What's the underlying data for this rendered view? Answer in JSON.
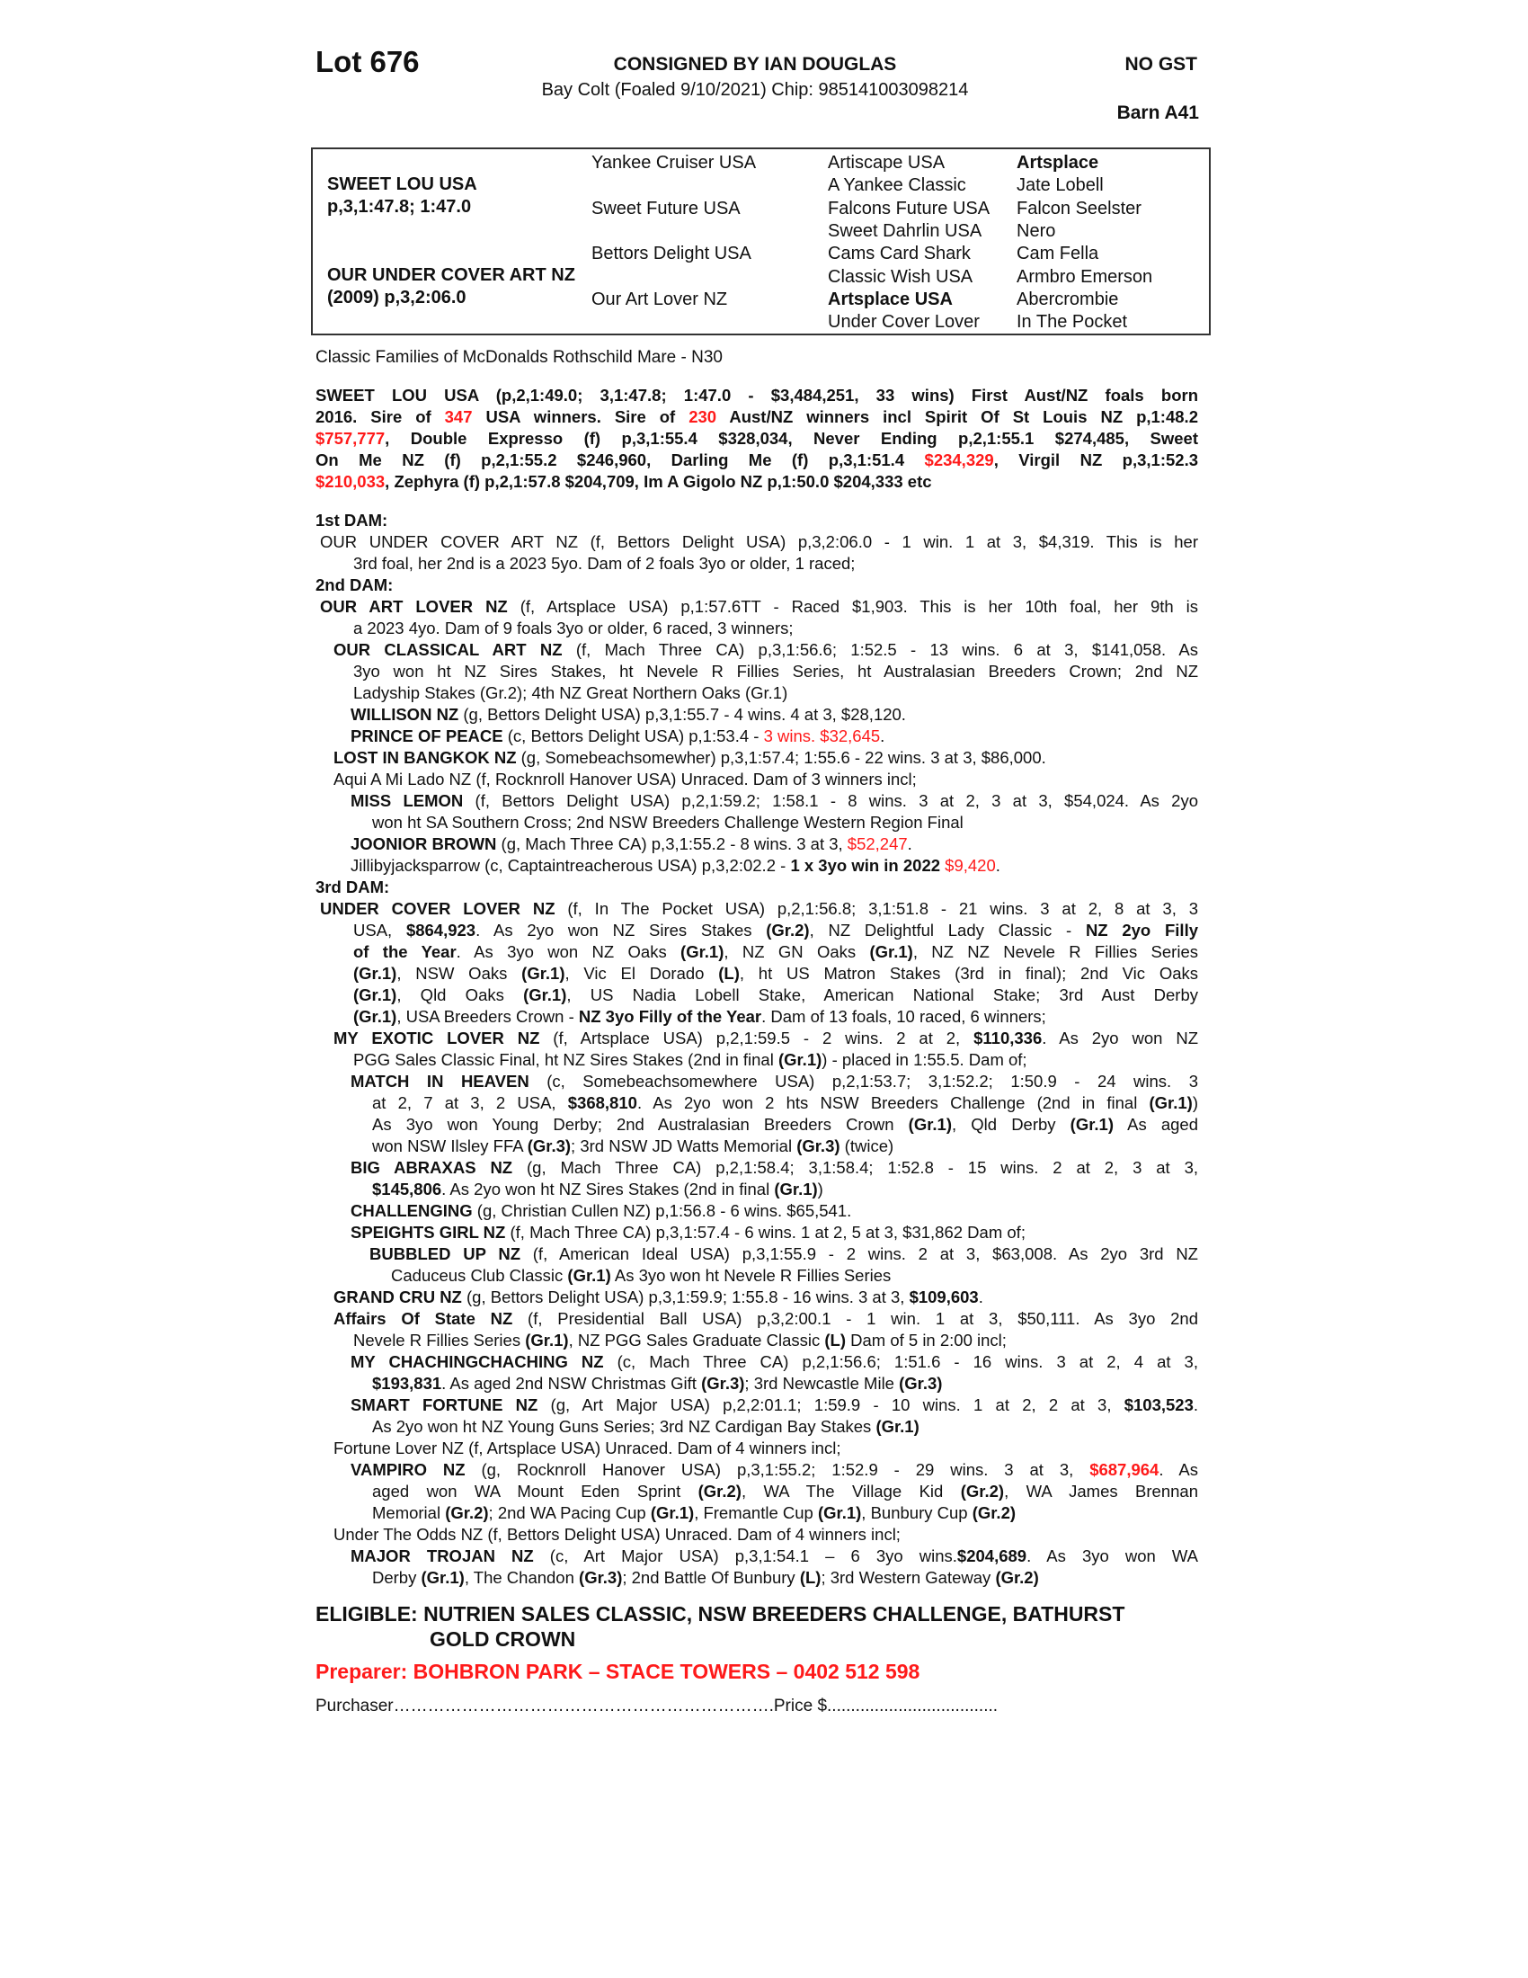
{
  "header": {
    "lot": "Lot 676",
    "consigned": "CONSIGNED BY IAN DOUGLAS",
    "horse": "Bay Colt (Foaled 9/10/2021) Chip: 985141003098214",
    "gst": "NO GST",
    "barn": "Barn A41"
  },
  "pedigree": {
    "sire": {
      "name": "SWEET LOU USA",
      "record": "p,3,1:47.8; 1:47.0"
    },
    "dam": {
      "name": "OUR UNDER COVER ART NZ",
      "record": "(2009) p,3,2:06.0"
    },
    "gen2": [
      "Yankee Cruiser USA",
      "Sweet Future USA",
      "Bettors Delight USA",
      "Our Art Lover NZ"
    ],
    "gen3": [
      "Artiscape USA",
      "A Yankee Classic",
      "Falcons Future USA",
      "Sweet Dahrlin USA",
      "Cams Card Shark",
      "Classic Wish USA",
      "Artsplace USA",
      "Under Cover Lover"
    ],
    "gen4": [
      "Artsplace",
      "Jate Lobell",
      "Falcon Seelster",
      "Nero",
      "Cam Fella",
      "Armbro Emerson",
      "Abercrombie",
      "In The Pocket"
    ],
    "bold_gen3": [
      6
    ],
    "bold_gen4": [
      0
    ]
  },
  "family": "Classic Families of McDonalds Rothschild Mare - N30",
  "colors": {
    "highlight": "#ff1a1a",
    "text": "#111111"
  },
  "sire_para": [
    [
      {
        "t": "SWEET LOU USA (p,2,1:49.0; 3,1:47.8; 1:47.0 - $3,484,251, 33 wins) First Aust/NZ foals born",
        "s": "b"
      }
    ],
    [
      {
        "t": "2016. Sire of ",
        "s": "b"
      },
      {
        "t": "347",
        "s": "rb"
      },
      {
        "t": " USA winners. Sire of ",
        "s": "b"
      },
      {
        "t": "230",
        "s": "rb"
      },
      {
        "t": " Aust/NZ winners incl Spirit Of St Louis NZ p,1:48.2",
        "s": "b"
      }
    ],
    [
      {
        "t": "$757,777",
        "s": "rb"
      },
      {
        "t": ", Double Expresso (f) p,3,1:55.4 $328,034, Never Ending p,2,1:55.1 $274,485, Sweet",
        "s": "b"
      }
    ],
    [
      {
        "t": "On Me NZ (f) p,2,1:55.2 $246,960, Darling Me (f) p,3,1:51.4 ",
        "s": "b"
      },
      {
        "t": "$234,329",
        "s": "rb"
      },
      {
        "t": ", Virgil NZ p,3,1:52.3",
        "s": "b"
      }
    ],
    [
      {
        "t": "$210,033",
        "s": "rb"
      },
      {
        "t": ", Zephyra (f) p,2,1:57.8 $204,709, Im A Gigolo NZ p,1:50.0 $204,333 etc",
        "s": "b"
      }
    ]
  ],
  "entries": [
    {
      "lvl": "h",
      "lines": [
        [
          {
            "t": "1st DAM:",
            "s": "b"
          }
        ]
      ]
    },
    {
      "lvl": "0",
      "lines": [
        [
          {
            "t": "OUR UNDER COVER ART NZ (f, Bettors Delight USA) p,3,2:06.0 - 1 win. 1 at 3, $4,319. This is her",
            "s": ""
          }
        ],
        [
          {
            "t": "3rd foal, her 2nd is a 2023 5yo. Dam of 2 foals 3yo or older, 1 raced;",
            "s": ""
          }
        ]
      ]
    },
    {
      "lvl": "h",
      "lines": [
        [
          {
            "t": "2nd DAM:",
            "s": "b"
          }
        ]
      ]
    },
    {
      "lvl": "0",
      "lines": [
        [
          {
            "t": "OUR ART LOVER NZ",
            "s": "b"
          },
          {
            "t": " (f, Artsplace USA) p,1:57.6TT - Raced $1,903. This is her 10th foal, her 9th is",
            "s": ""
          }
        ],
        [
          {
            "t": "a 2023 4yo. Dam of 9 foals 3yo or older, 6 raced, 3 winners;",
            "s": ""
          }
        ]
      ]
    },
    {
      "lvl": "1",
      "lines": [
        [
          {
            "t": "OUR CLASSICAL ART NZ",
            "s": "b"
          },
          {
            "t": " (f, Mach Three CA) p,3,1:56.6; 1:52.5 - 13 wins. 6 at 3, $141,058. As",
            "s": ""
          }
        ],
        [
          {
            "t": "3yo won ht NZ Sires Stakes, ht Nevele R Fillies Series, ht Australasian Breeders Crown; 2nd NZ",
            "s": ""
          }
        ],
        [
          {
            "t": "Ladyship Stakes (Gr.2); 4th NZ Great Northern Oaks (Gr.1)",
            "s": ""
          }
        ]
      ]
    },
    {
      "lvl": "2",
      "lines": [
        [
          {
            "t": "WILLISON NZ",
            "s": "b"
          },
          {
            "t": " (g, Bettors Delight USA) p,3,1:55.7 - 4 wins. 4 at 3, $28,120.",
            "s": ""
          }
        ]
      ]
    },
    {
      "lvl": "2",
      "lines": [
        [
          {
            "t": "PRINCE OF PEACE",
            "s": "b"
          },
          {
            "t": " (c, Bettors Delight USA) p,1:53.4 - ",
            "s": ""
          },
          {
            "t": "3 wins. $32,645",
            "s": "r"
          },
          {
            "t": ".",
            "s": ""
          }
        ]
      ]
    },
    {
      "lvl": "1",
      "lines": [
        [
          {
            "t": "LOST IN BANGKOK NZ",
            "s": "b"
          },
          {
            "t": " (g, Somebeachsomewher) p,3,1:57.4; 1:55.6 - 22 wins. 3 at 3, $86,000.",
            "s": ""
          }
        ]
      ]
    },
    {
      "lvl": "1",
      "lines": [
        [
          {
            "t": "Aqui A Mi Lado NZ (f, Rocknroll Hanover USA) Unraced. Dam of 3 winners incl;",
            "s": ""
          }
        ]
      ]
    },
    {
      "lvl": "2",
      "lines": [
        [
          {
            "t": "MISS LEMON",
            "s": "b"
          },
          {
            "t": " (f, Bettors Delight USA) p,2,1:59.2; 1:58.1 - 8 wins. 3 at 2, 3 at 3, $54,024. As 2yo",
            "s": ""
          }
        ],
        [
          {
            "t": "won ht SA Southern Cross; 2nd NSW Breeders Challenge Western Region Final",
            "s": ""
          }
        ]
      ]
    },
    {
      "lvl": "2",
      "lines": [
        [
          {
            "t": "JOONIOR BROWN",
            "s": "b"
          },
          {
            "t": " (g, Mach Three CA) p,3,1:55.2 - 8 wins. 3 at 3, ",
            "s": ""
          },
          {
            "t": "$52,247",
            "s": "r"
          },
          {
            "t": ".",
            "s": ""
          }
        ]
      ]
    },
    {
      "lvl": "2",
      "lines": [
        [
          {
            "t": "Jillibyjacksparrow (c, Captaintreacherous USA) p,3,2:02.2 - ",
            "s": ""
          },
          {
            "t": "1 x 3yo win in 2022",
            "s": "b"
          },
          {
            "t": " ",
            "s": ""
          },
          {
            "t": "$9,420",
            "s": "r"
          },
          {
            "t": ".",
            "s": ""
          }
        ]
      ]
    },
    {
      "lvl": "h",
      "lines": [
        [
          {
            "t": "3rd DAM:",
            "s": "b"
          }
        ]
      ]
    },
    {
      "lvl": "0",
      "lines": [
        [
          {
            "t": "UNDER COVER LOVER NZ",
            "s": "b"
          },
          {
            "t": " (f, In The Pocket USA) p,2,1:56.8; 3,1:51.8 - 21 wins. 3 at 2, 8 at 3, 3",
            "s": ""
          }
        ],
        [
          {
            "t": "USA, ",
            "s": ""
          },
          {
            "t": "$864,923",
            "s": "b"
          },
          {
            "t": ". As 2yo won NZ Sires Stakes ",
            "s": ""
          },
          {
            "t": "(Gr.2)",
            "s": "b"
          },
          {
            "t": ", NZ Delightful Lady Classic - ",
            "s": ""
          },
          {
            "t": "NZ 2yo Filly",
            "s": "b"
          }
        ],
        [
          {
            "t": "of the Year",
            "s": "b"
          },
          {
            "t": ". As 3yo won NZ Oaks ",
            "s": ""
          },
          {
            "t": "(Gr.1)",
            "s": "b"
          },
          {
            "t": ", NZ GN Oaks ",
            "s": ""
          },
          {
            "t": "(Gr.1)",
            "s": "b"
          },
          {
            "t": ", NZ NZ Nevele R Fillies Series",
            "s": ""
          }
        ],
        [
          {
            "t": "(Gr.1)",
            "s": "b"
          },
          {
            "t": ", NSW Oaks ",
            "s": ""
          },
          {
            "t": "(Gr.1)",
            "s": "b"
          },
          {
            "t": ", Vic El Dorado ",
            "s": ""
          },
          {
            "t": "(L)",
            "s": "b"
          },
          {
            "t": ", ht US Matron Stakes (3rd in final); 2nd Vic Oaks",
            "s": ""
          }
        ],
        [
          {
            "t": "(Gr.1)",
            "s": "b"
          },
          {
            "t": ", Qld Oaks ",
            "s": ""
          },
          {
            "t": "(Gr.1)",
            "s": "b"
          },
          {
            "t": ", US Nadia Lobell Stake, American National Stake; 3rd Aust Derby",
            "s": ""
          }
        ],
        [
          {
            "t": "(Gr.1)",
            "s": "b"
          },
          {
            "t": ", USA Breeders Crown - ",
            "s": ""
          },
          {
            "t": "NZ 3yo Filly of the Year",
            "s": "b"
          },
          {
            "t": ". Dam of 13 foals, 10 raced, 6 winners;",
            "s": ""
          }
        ]
      ]
    },
    {
      "lvl": "1",
      "lines": [
        [
          {
            "t": "MY EXOTIC LOVER NZ",
            "s": "b"
          },
          {
            "t": " (f, Artsplace USA) p,2,1:59.5 - 2 wins. 2 at 2, ",
            "s": ""
          },
          {
            "t": "$110,336",
            "s": "b"
          },
          {
            "t": ". As 2yo won NZ",
            "s": ""
          }
        ],
        [
          {
            "t": "PGG Sales Classic Final, ht NZ Sires Stakes (2nd in final ",
            "s": ""
          },
          {
            "t": "(Gr.1)",
            "s": "b"
          },
          {
            "t": ") - placed in 1:55.5. Dam of;",
            "s": ""
          }
        ]
      ]
    },
    {
      "lvl": "2",
      "lines": [
        [
          {
            "t": "MATCH IN HEAVEN",
            "s": "b"
          },
          {
            "t": " (c, Somebeachsomewhere USA) p,2,1:53.7; 3,1:52.2; 1:50.9 - 24 wins. 3",
            "s": ""
          }
        ],
        [
          {
            "t": "at 2, 7 at 3, 2 USA, ",
            "s": ""
          },
          {
            "t": "$368,810",
            "s": "b"
          },
          {
            "t": ". As 2yo won 2 hts NSW Breeders Challenge (2nd in final ",
            "s": ""
          },
          {
            "t": "(Gr.1)",
            "s": "b"
          },
          {
            "t": ")",
            "s": ""
          }
        ],
        [
          {
            "t": "As 3yo won Young Derby; 2nd Australasian Breeders Crown ",
            "s": ""
          },
          {
            "t": "(Gr.1)",
            "s": "b"
          },
          {
            "t": ", Qld Derby ",
            "s": ""
          },
          {
            "t": "(Gr.1)",
            "s": "b"
          },
          {
            "t": " As aged",
            "s": ""
          }
        ],
        [
          {
            "t": "won NSW Ilsley FFA ",
            "s": ""
          },
          {
            "t": "(Gr.3)",
            "s": "b"
          },
          {
            "t": "; 3rd NSW JD Watts Memorial ",
            "s": ""
          },
          {
            "t": "(Gr.3)",
            "s": "b"
          },
          {
            "t": " (twice)",
            "s": ""
          }
        ]
      ]
    },
    {
      "lvl": "2",
      "lines": [
        [
          {
            "t": "BIG ABRAXAS NZ",
            "s": "b"
          },
          {
            "t": " (g, Mach Three CA) p,2,1:58.4; 3,1:58.4; 1:52.8 - 15 wins. 2 at 2, 3 at 3,",
            "s": ""
          }
        ],
        [
          {
            "t": "$145,806",
            "s": "b"
          },
          {
            "t": ". As 2yo won ht NZ Sires Stakes (2nd in final ",
            "s": ""
          },
          {
            "t": "(Gr.1)",
            "s": "b"
          },
          {
            "t": ")",
            "s": ""
          }
        ]
      ]
    },
    {
      "lvl": "2",
      "lines": [
        [
          {
            "t": "CHALLENGING",
            "s": "b"
          },
          {
            "t": " (g, Christian Cullen NZ) p,1:56.8 - 6 wins. $65,541.",
            "s": ""
          }
        ]
      ]
    },
    {
      "lvl": "2",
      "lines": [
        [
          {
            "t": "SPEIGHTS GIRL NZ",
            "s": "b"
          },
          {
            "t": " (f, Mach Three CA) p,3,1:57.4 - 6 wins. 1 at 2, 5 at 3, $31,862 Dam of;",
            "s": ""
          }
        ]
      ]
    },
    {
      "lvl": "3",
      "lines": [
        [
          {
            "t": "BUBBLED UP NZ",
            "s": "b"
          },
          {
            "t": " (f, American Ideal USA) p,3,1:55.9 - 2 wins. 2 at 3, $63,008. As 2yo 3rd NZ",
            "s": ""
          }
        ],
        [
          {
            "t": "Caduceus Club Classic ",
            "s": ""
          },
          {
            "t": "(Gr.1)",
            "s": "b"
          },
          {
            "t": " As 3yo won ht Nevele R Fillies Series",
            "s": ""
          }
        ]
      ]
    },
    {
      "lvl": "1",
      "lines": [
        [
          {
            "t": "GRAND CRU NZ",
            "s": "b"
          },
          {
            "t": " (g, Bettors Delight USA) p,3,1:59.9; 1:55.8 - 16 wins. 3 at 3, ",
            "s": ""
          },
          {
            "t": "$109,603",
            "s": "b"
          },
          {
            "t": ".",
            "s": ""
          }
        ]
      ]
    },
    {
      "lvl": "1",
      "lines": [
        [
          {
            "t": "Affairs Of State NZ",
            "s": "b"
          },
          {
            "t": " (f, Presidential Ball USA) p,3,2:00.1 - 1 win. 1 at 3, $50,111. As 3yo 2nd",
            "s": ""
          }
        ],
        [
          {
            "t": "Nevele R Fillies Series ",
            "s": ""
          },
          {
            "t": "(Gr.1)",
            "s": "b"
          },
          {
            "t": ", NZ PGG Sales Graduate Classic ",
            "s": ""
          },
          {
            "t": "(L)",
            "s": "b"
          },
          {
            "t": " Dam of 5 in 2:00 incl;",
            "s": ""
          }
        ]
      ]
    },
    {
      "lvl": "2",
      "lines": [
        [
          {
            "t": "MY CHACHINGCHACHING NZ",
            "s": "b"
          },
          {
            "t": " (c, Mach Three CA) p,2,1:56.6; 1:51.6 - 16 wins. 3 at 2, 4 at 3,",
            "s": ""
          }
        ],
        [
          {
            "t": "$193,831",
            "s": "b"
          },
          {
            "t": ". As aged 2nd NSW Christmas Gift ",
            "s": ""
          },
          {
            "t": "(Gr.3)",
            "s": "b"
          },
          {
            "t": "; 3rd Newcastle Mile ",
            "s": ""
          },
          {
            "t": "(Gr.3)",
            "s": "b"
          }
        ]
      ]
    },
    {
      "lvl": "2",
      "lines": [
        [
          {
            "t": "SMART FORTUNE NZ",
            "s": "b"
          },
          {
            "t": " (g, Art Major USA) p,2,2:01.1; 1:59.9 - 10 wins. 1 at 2, 2 at 3, ",
            "s": ""
          },
          {
            "t": "$103,523",
            "s": "b"
          },
          {
            "t": ".",
            "s": ""
          }
        ],
        [
          {
            "t": "As 2yo won ht NZ Young Guns Series; 3rd NZ Cardigan Bay Stakes ",
            "s": ""
          },
          {
            "t": "(Gr.1)",
            "s": "b"
          }
        ]
      ]
    },
    {
      "lvl": "1",
      "lines": [
        [
          {
            "t": "Fortune Lover NZ (f, Artsplace USA) Unraced. Dam of 4 winners incl;",
            "s": ""
          }
        ]
      ]
    },
    {
      "lvl": "2",
      "lines": [
        [
          {
            "t": "VAMPIRO NZ",
            "s": "b"
          },
          {
            "t": " (g, Rocknroll Hanover USA) p,3,1:55.2; 1:52.9 - 29 wins. 3 at 3, ",
            "s": ""
          },
          {
            "t": "$687,964",
            "s": "rb"
          },
          {
            "t": ". As",
            "s": ""
          }
        ],
        [
          {
            "t": "aged won WA Mount Eden Sprint ",
            "s": ""
          },
          {
            "t": "(Gr.2)",
            "s": "b"
          },
          {
            "t": ", WA The Village Kid ",
            "s": ""
          },
          {
            "t": "(Gr.2)",
            "s": "b"
          },
          {
            "t": ", WA James Brennan",
            "s": ""
          }
        ],
        [
          {
            "t": "Memorial ",
            "s": ""
          },
          {
            "t": "(Gr.2)",
            "s": "b"
          },
          {
            "t": "; 2nd WA Pacing Cup ",
            "s": ""
          },
          {
            "t": "(Gr.1)",
            "s": "b"
          },
          {
            "t": ", Fremantle Cup ",
            "s": ""
          },
          {
            "t": "(Gr.1)",
            "s": "b"
          },
          {
            "t": ", Bunbury Cup ",
            "s": ""
          },
          {
            "t": "(Gr.2)",
            "s": "b"
          }
        ]
      ]
    },
    {
      "lvl": "1",
      "lines": [
        [
          {
            "t": "Under The Odds NZ (f, Bettors Delight USA) Unraced. Dam of 4 winners incl;",
            "s": ""
          }
        ]
      ]
    },
    {
      "lvl": "2",
      "lines": [
        [
          {
            "t": "MAJOR TROJAN NZ",
            "s": "b"
          },
          {
            "t": " (c, Art Major USA) p,3,1:54.1 – 6 3yo wins.",
            "s": ""
          },
          {
            "t": "$204,689",
            "s": "b"
          },
          {
            "t": ". As 3yo won WA",
            "s": ""
          }
        ],
        [
          {
            "t": "Derby ",
            "s": ""
          },
          {
            "t": "(Gr.1)",
            "s": "b"
          },
          {
            "t": ", The Chandon ",
            "s": ""
          },
          {
            "t": "(Gr.3)",
            "s": "b"
          },
          {
            "t": "; 2nd Battle Of Bunbury ",
            "s": ""
          },
          {
            "t": "(L)",
            "s": "b"
          },
          {
            "t": "; 3rd Western Gateway ",
            "s": ""
          },
          {
            "t": "(Gr.2)",
            "s": "b"
          }
        ]
      ]
    }
  ],
  "eligible": [
    "ELIGIBLE: NUTRIEN SALES CLASSIC, NSW BREEDERS CHALLENGE, BATHURST",
    "GOLD CROWN"
  ],
  "preparer": "Preparer: BOHBRON PARK – STACE TOWERS – 0402 512 598",
  "purchaser": "Purchaser………………………………………………………….Price $...................................."
}
